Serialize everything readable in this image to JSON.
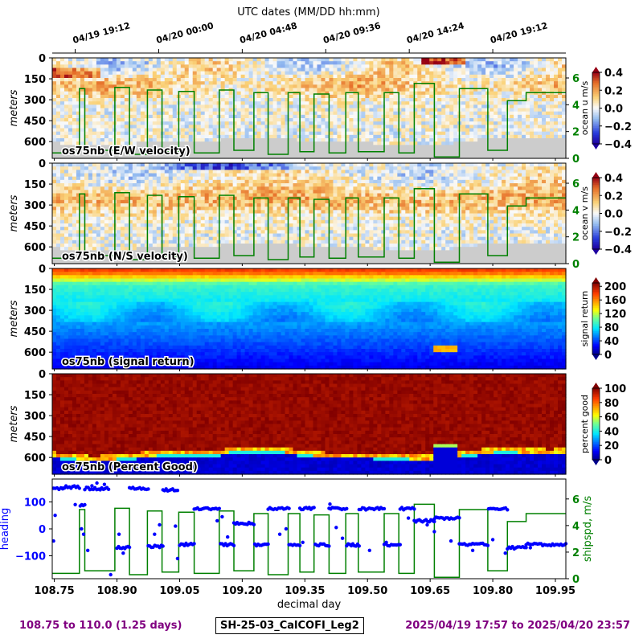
{
  "chart_data": {
    "type": "heatmap",
    "top_axis_label": "UTC dates (MM/DD hh:mm)",
    "top_ticks": [
      "04/19 19:12",
      "04/20 00:00",
      "04/20 04:48",
      "04/20 09:36",
      "04/20 14:24",
      "04/20 19:12"
    ],
    "top_tick_days": [
      108.8,
      109.0,
      109.2,
      109.4,
      109.6,
      109.8
    ],
    "xlabel": "decimal day",
    "x_ticks": [
      "108.75",
      "108.90",
      "109.05",
      "109.20",
      "109.35",
      "109.50",
      "109.65",
      "109.80",
      "109.95"
    ],
    "xlim": [
      108.745,
      109.975
    ],
    "depth_ticks": [
      "0",
      "150",
      "300",
      "450",
      "600"
    ],
    "depth_range_m": [
      0,
      720
    ],
    "depth_label": "meters",
    "panels": [
      {
        "name": "u",
        "label": "os75nb (E/W velocity)",
        "colorbar_label": "ocean u m/s",
        "colorbar_ticks": [
          "0.4",
          "0.2",
          "0.0",
          "−0.2",
          "−0.4"
        ],
        "range": [
          -0.4,
          0.4
        ],
        "right_axis_ticks": [
          "6",
          "4",
          "2",
          "0"
        ]
      },
      {
        "name": "v",
        "label": "os75nb (N/S velocity)",
        "colorbar_label": "ocean v m/s",
        "colorbar_ticks": [
          "0.4",
          "0.2",
          "0.0",
          "−0.2",
          "−0.4"
        ],
        "range": [
          -0.4,
          0.4
        ],
        "right_axis_ticks": [
          "6",
          "4",
          "2",
          "0"
        ]
      },
      {
        "name": "amp",
        "label": "os75nb (signal return)",
        "colorbar_label": "signal return",
        "colorbar_ticks": [
          "200",
          "160",
          "120",
          "80",
          "40",
          "0"
        ],
        "range": [
          0,
          210
        ]
      },
      {
        "name": "pg",
        "label": "os75nb (Percent Good)",
        "colorbar_label": "percent good",
        "colorbar_ticks": [
          "100",
          "80",
          "60",
          "40",
          "20",
          "0"
        ],
        "range": [
          0,
          100
        ]
      }
    ],
    "bottom_panel": {
      "left_label": "heading",
      "left_ticks": [
        "100",
        "0",
        "−100"
      ],
      "heading_range": [
        -185,
        185
      ],
      "right_label": "shipspd, m/s",
      "right_ticks": [
        "6",
        "4",
        "2",
        "0"
      ],
      "speed_range": [
        0,
        7.5
      ]
    },
    "ship_speed_series": {
      "name": "shipspd, m/s",
      "color": "#008000",
      "segments": [
        {
          "start": 108.745,
          "end": 108.81,
          "speed": 0.4
        },
        {
          "start": 108.81,
          "end": 108.823,
          "speed": 5.2
        },
        {
          "start": 108.823,
          "end": 108.895,
          "speed": 0.6
        },
        {
          "start": 108.895,
          "end": 108.93,
          "speed": 5.3
        },
        {
          "start": 108.93,
          "end": 108.973,
          "speed": 0.3
        },
        {
          "start": 108.973,
          "end": 109.008,
          "speed": 5.1
        },
        {
          "start": 109.008,
          "end": 109.048,
          "speed": 0.5
        },
        {
          "start": 109.048,
          "end": 109.085,
          "speed": 5.0
        },
        {
          "start": 109.085,
          "end": 109.145,
          "speed": 0.4
        },
        {
          "start": 109.145,
          "end": 109.18,
          "speed": 5.1
        },
        {
          "start": 109.18,
          "end": 109.228,
          "speed": 0.6
        },
        {
          "start": 109.228,
          "end": 109.262,
          "speed": 4.9
        },
        {
          "start": 109.262,
          "end": 109.31,
          "speed": 0.3
        },
        {
          "start": 109.31,
          "end": 109.338,
          "speed": 4.9
        },
        {
          "start": 109.338,
          "end": 109.372,
          "speed": 0.5
        },
        {
          "start": 109.372,
          "end": 109.408,
          "speed": 4.8
        },
        {
          "start": 109.408,
          "end": 109.448,
          "speed": 0.4
        },
        {
          "start": 109.448,
          "end": 109.478,
          "speed": 4.9
        },
        {
          "start": 109.478,
          "end": 109.54,
          "speed": 0.5
        },
        {
          "start": 109.54,
          "end": 109.575,
          "speed": 4.9
        },
        {
          "start": 109.575,
          "end": 109.612,
          "speed": 0.4
        },
        {
          "start": 109.612,
          "end": 109.66,
          "speed": 5.6
        },
        {
          "start": 109.66,
          "end": 109.72,
          "speed": 0.1
        },
        {
          "start": 109.72,
          "end": 109.788,
          "speed": 5.2
        },
        {
          "start": 109.788,
          "end": 109.835,
          "speed": 0.6
        },
        {
          "start": 109.835,
          "end": 109.88,
          "speed": 4.3
        },
        {
          "start": 109.88,
          "end": 109.975,
          "speed": 4.9
        }
      ]
    },
    "heading_series": {
      "name": "heading",
      "color": "#0000ff",
      "runs": [
        {
          "start": 108.748,
          "end": 108.77,
          "heading": 150
        },
        {
          "start": 108.77,
          "end": 108.81,
          "heading": 155
        },
        {
          "start": 108.812,
          "end": 108.823,
          "heading": 88
        },
        {
          "start": 108.823,
          "end": 108.835,
          "heading": 150
        },
        {
          "start": 108.835,
          "end": 108.88,
          "heading": 150
        },
        {
          "start": 108.9,
          "end": 108.93,
          "heading": -70
        },
        {
          "start": 108.93,
          "end": 108.975,
          "heading": 150
        },
        {
          "start": 108.975,
          "end": 109.01,
          "heading": -65
        },
        {
          "start": 109.01,
          "end": 109.045,
          "heading": 145
        },
        {
          "start": 109.05,
          "end": 109.085,
          "heading": -58
        },
        {
          "start": 109.085,
          "end": 109.145,
          "heading": 75
        },
        {
          "start": 109.148,
          "end": 109.18,
          "heading": -58
        },
        {
          "start": 109.18,
          "end": 109.228,
          "heading": 20
        },
        {
          "start": 109.23,
          "end": 109.262,
          "heading": -60
        },
        {
          "start": 109.262,
          "end": 109.312,
          "heading": 75
        },
        {
          "start": 109.312,
          "end": 109.338,
          "heading": -60
        },
        {
          "start": 109.338,
          "end": 109.372,
          "heading": 75
        },
        {
          "start": 109.375,
          "end": 109.408,
          "heading": -60
        },
        {
          "start": 109.408,
          "end": 109.45,
          "heading": 75
        },
        {
          "start": 109.45,
          "end": 109.48,
          "heading": -60
        },
        {
          "start": 109.48,
          "end": 109.54,
          "heading": 75
        },
        {
          "start": 109.54,
          "end": 109.578,
          "heading": -60
        },
        {
          "start": 109.578,
          "end": 109.612,
          "heading": 75
        },
        {
          "start": 109.612,
          "end": 109.66,
          "heading": 30
        },
        {
          "start": 109.66,
          "end": 109.72,
          "heading": 40
        },
        {
          "start": 109.72,
          "end": 109.788,
          "heading": -58
        },
        {
          "start": 109.79,
          "end": 109.835,
          "heading": 75
        },
        {
          "start": 109.835,
          "end": 109.88,
          "heading": -70
        },
        {
          "start": 109.88,
          "end": 109.975,
          "heading": -58
        }
      ],
      "scatter_points": [
        {
          "x": 108.752,
          "y": 50
        },
        {
          "x": 108.748,
          "y": -45
        },
        {
          "x": 108.8,
          "y": 90
        },
        {
          "x": 108.815,
          "y": 0
        },
        {
          "x": 108.82,
          "y": -20
        },
        {
          "x": 108.83,
          "y": -80
        },
        {
          "x": 108.84,
          "y": 160
        },
        {
          "x": 108.852,
          "y": 170
        },
        {
          "x": 108.86,
          "y": 145
        },
        {
          "x": 108.87,
          "y": 165
        },
        {
          "x": 108.885,
          "y": -170
        },
        {
          "x": 108.905,
          "y": -20
        },
        {
          "x": 108.915,
          "y": -90
        },
        {
          "x": 108.99,
          "y": -20
        },
        {
          "x": 109.002,
          "y": 15
        },
        {
          "x": 109.04,
          "y": 10
        },
        {
          "x": 109.045,
          "y": -110
        },
        {
          "x": 109.14,
          "y": 30
        },
        {
          "x": 109.152,
          "y": 45
        },
        {
          "x": 109.165,
          "y": -30
        },
        {
          "x": 109.215,
          "y": 20
        },
        {
          "x": 109.29,
          "y": -20
        },
        {
          "x": 109.305,
          "y": 0
        },
        {
          "x": 109.345,
          "y": -50
        },
        {
          "x": 109.41,
          "y": 92
        },
        {
          "x": 109.425,
          "y": 5
        },
        {
          "x": 109.44,
          "y": -35
        },
        {
          "x": 109.505,
          "y": -80
        },
        {
          "x": 109.545,
          "y": -50
        },
        {
          "x": 109.598,
          "y": 40
        },
        {
          "x": 109.643,
          "y": 15
        },
        {
          "x": 109.66,
          "y": -10
        },
        {
          "x": 109.7,
          "y": -45
        },
        {
          "x": 109.752,
          "y": -80
        },
        {
          "x": 109.8,
          "y": -40
        },
        {
          "x": 109.83,
          "y": -90
        },
        {
          "x": 109.89,
          "y": -70
        }
      ]
    }
  },
  "footer": {
    "left": "108.75 to 110.0 (1.25 days)",
    "center": "SH-25-03_CalCOFI_Leg2",
    "right": "2025/04/19 17:57 to 2025/04/20 23:57"
  }
}
